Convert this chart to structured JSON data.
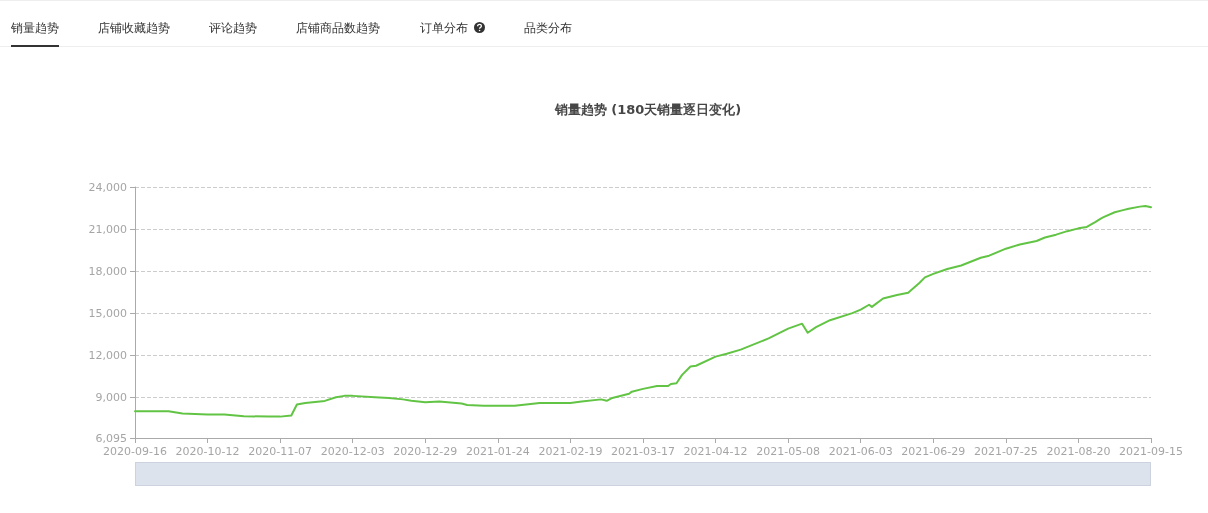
{
  "chart_data": {
    "type": "line",
    "title": "销量趋势 (180天销量逐日变化)",
    "annotations": [
      "销量趋势",
      "店铺收藏趋势",
      "评论趋势",
      "店铺商品数趋势",
      "订单分布",
      "品类分布"
    ],
    "x": [
      "2020-09-16",
      "2020-09-28",
      "2020-10-03",
      "2020-10-12",
      "2020-10-18",
      "2020-10-25",
      "2020-11-03",
      "2020-11-07",
      "2020-11-11",
      "2020-11-13",
      "2020-11-16",
      "2020-11-23",
      "2020-11-27",
      "2020-11-30",
      "2020-12-03",
      "2020-12-11",
      "2020-12-16",
      "2020-12-21",
      "2020-12-24",
      "2020-12-29",
      "2021-01-03",
      "2021-01-11",
      "2021-01-13",
      "2021-01-19",
      "2021-01-24",
      "2021-01-30",
      "2021-02-08",
      "2021-02-13",
      "2021-02-19",
      "2021-02-23",
      "2021-03-02",
      "2021-03-04",
      "2021-03-06",
      "2021-03-12",
      "2021-03-13",
      "2021-03-17",
      "2021-03-22",
      "2021-03-26",
      "2021-03-27",
      "2021-03-29",
      "2021-03-31",
      "2021-04-03",
      "2021-04-05",
      "2021-04-12",
      "2021-04-16",
      "2021-04-21",
      "2021-05-01",
      "2021-05-08",
      "2021-05-13",
      "2021-05-15",
      "2021-05-18",
      "2021-05-23",
      "2021-05-31",
      "2021-06-03",
      "2021-06-06",
      "2021-06-07",
      "2021-06-11",
      "2021-06-16",
      "2021-06-20",
      "2021-06-24",
      "2021-06-26",
      "2021-06-29",
      "2021-07-04",
      "2021-07-09",
      "2021-07-16",
      "2021-07-19",
      "2021-07-25",
      "2021-07-30",
      "2021-08-05",
      "2021-08-08",
      "2021-08-12",
      "2021-08-16",
      "2021-08-20",
      "2021-08-23",
      "2021-08-26",
      "2021-08-28",
      "2021-08-29",
      "2021-09-02",
      "2021-09-05",
      "2021-09-07",
      "2021-09-11",
      "2021-09-13",
      "2021-09-15"
    ],
    "series": [
      {
        "color": "#62c444",
        "values": [
          8000,
          8000,
          7850,
          7770,
          7770,
          7650,
          7620,
          7620,
          7700,
          8480,
          8590,
          8740,
          9000,
          9100,
          9100,
          9000,
          8950,
          8850,
          8750,
          8650,
          8700,
          8550,
          8450,
          8400,
          8400,
          8400,
          8600,
          8600,
          8600,
          8700,
          8850,
          8750,
          8950,
          9250,
          9400,
          9600,
          9800,
          9800,
          9950,
          10000,
          10600,
          11200,
          11250,
          11900,
          12100,
          12400,
          13200,
          13900,
          14250,
          13600,
          14000,
          14500,
          15000,
          15250,
          15600,
          15450,
          16050,
          16300,
          16450,
          17150,
          17550,
          17800,
          18150,
          18400,
          18950,
          19100,
          19600,
          19900,
          20150,
          20400,
          20600,
          20850,
          21050,
          21150,
          21500,
          21750,
          21850,
          22200,
          22350,
          22450,
          22600,
          22650,
          22550
        ]
      }
    ],
    "xlim": [
      "2020-09-16",
      "2021-09-15"
    ],
    "xticks": [
      "2020-09-16",
      "2020-10-12",
      "2020-11-07",
      "2020-12-03",
      "2020-12-29",
      "2021-01-24",
      "2021-02-19",
      "2021-03-17",
      "2021-04-12",
      "2021-05-08",
      "2021-06-03",
      "2021-06-29",
      "2021-07-25",
      "2021-08-20",
      "2021-09-15"
    ],
    "ylim": [
      6095,
      24000
    ],
    "yticks": [
      {
        "value": 6095,
        "label": "6,095"
      },
      {
        "value": 9000,
        "label": "9,000"
      },
      {
        "value": 12000,
        "label": "12,000"
      },
      {
        "value": 15000,
        "label": "15,000"
      },
      {
        "value": 18000,
        "label": "18,000"
      },
      {
        "value": 21000,
        "label": "21,000"
      },
      {
        "value": 24000,
        "label": "24,000"
      }
    ],
    "grid": "y",
    "line_style": "solid"
  }
}
